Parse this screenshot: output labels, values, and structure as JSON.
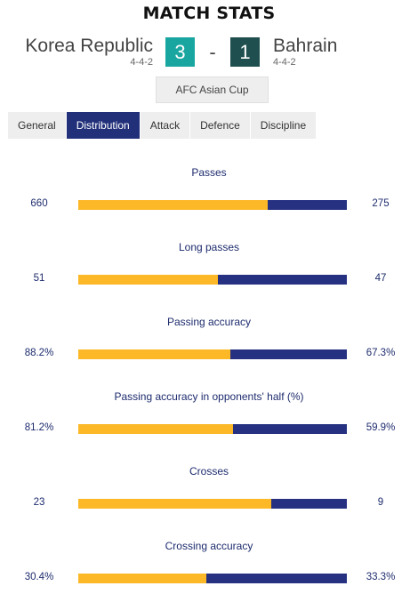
{
  "header": {
    "title": "MATCH STATS"
  },
  "match": {
    "home": {
      "name": "Korea Republic",
      "formation": "4-4-2",
      "score": "3"
    },
    "separator": "-",
    "away": {
      "name": "Bahrain",
      "formation": "4-4-2",
      "score": "1"
    },
    "competition": "AFC Asian Cup"
  },
  "tabs": [
    {
      "label": "General",
      "active": false
    },
    {
      "label": "Distribution",
      "active": true
    },
    {
      "label": "Attack",
      "active": false
    },
    {
      "label": "Defence",
      "active": false
    },
    {
      "label": "Discipline",
      "active": false
    }
  ],
  "stats": [
    {
      "label": "Passes",
      "home": "660",
      "away": "275",
      "home_share": 0.706
    },
    {
      "label": "Long passes",
      "home": "51",
      "away": "47",
      "home_share": 0.52
    },
    {
      "label": "Passing accuracy",
      "home": "88.2%",
      "away": "67.3%",
      "home_share": 0.567
    },
    {
      "label": "Passing accuracy in opponents' half (%)",
      "home": "81.2%",
      "away": "59.9%",
      "home_share": 0.575
    },
    {
      "label": "Crosses",
      "home": "23",
      "away": "9",
      "home_share": 0.719
    },
    {
      "label": "Crossing accuracy",
      "home": "30.4%",
      "away": "33.3%",
      "home_share": 0.477
    }
  ],
  "colors": {
    "home_bar": "#fcb827",
    "away_bar": "#263281",
    "home_score_bg": "#1aa6a0",
    "away_score_bg": "#1f4f4f",
    "active_tab": "#22307a"
  }
}
